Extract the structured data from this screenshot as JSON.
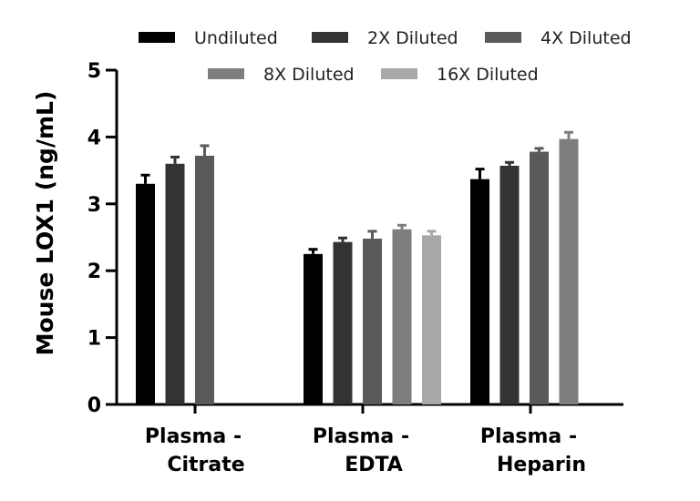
{
  "chart_data": {
    "type": "bar",
    "title": "",
    "xlabel": "",
    "ylabel": "Mouse LOX1 (ng/mL)",
    "ylim": [
      0,
      5
    ],
    "yticks": [
      "0",
      "1",
      "2",
      "3",
      "4",
      "5"
    ],
    "categories": [
      [
        "Plasma -",
        "Citrate"
      ],
      [
        "Plasma -",
        "EDTA"
      ],
      [
        "Plasma -",
        "Heparin"
      ]
    ],
    "series": [
      {
        "name": "Undiluted",
        "color": "#000000",
        "values": [
          3.3,
          2.25,
          3.37
        ],
        "errors": [
          0.13,
          0.07,
          0.15
        ]
      },
      {
        "name": "2X Diluted",
        "color": "#333333",
        "values": [
          3.6,
          2.43,
          3.57
        ],
        "errors": [
          0.1,
          0.06,
          0.05
        ]
      },
      {
        "name": "4X Diluted",
        "color": "#5a5a5a",
        "values": [
          3.72,
          2.48,
          3.78
        ],
        "errors": [
          0.15,
          0.11,
          0.05
        ]
      },
      {
        "name": "8X Diluted",
        "color": "#7e7e7e",
        "values": [
          null,
          2.62,
          3.97
        ],
        "errors": [
          null,
          0.06,
          0.1
        ]
      },
      {
        "name": "16X Diluted",
        "color": "#a8a8a8",
        "values": [
          null,
          2.53,
          null
        ],
        "errors": [
          null,
          0.06,
          null
        ]
      }
    ],
    "legend_position": "top"
  }
}
